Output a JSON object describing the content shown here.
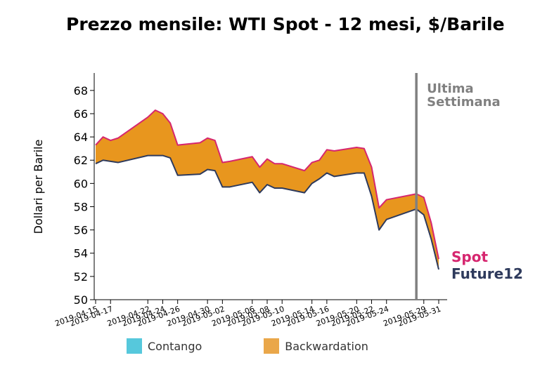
{
  "title": "Prezzo mensile: WTI Spot - 12 mesi, $/Barile",
  "chart_data": {
    "type": "area",
    "title": "Prezzo mensile: WTI Spot - 12 mesi, $/Barile",
    "ylabel": "Dollari per Barile",
    "xlabel": "",
    "ylim": [
      50,
      69.5
    ],
    "yticks": [
      50,
      52,
      54,
      56,
      58,
      60,
      62,
      64,
      66,
      68
    ],
    "xtick_labels": [
      "2019-04-15",
      "2019-04-17",
      "2019-04-22",
      "2019-04-24",
      "2019-04-26",
      "2019-04-30",
      "2019-05-02",
      "2019-05-06",
      "2019-05-08",
      "2019-05-10",
      "2019-05-14",
      "2019-05-16",
      "2019-05-20",
      "2019-05-22",
      "2019-05-24",
      "2019-05-29",
      "2019-05-31"
    ],
    "x": [
      "2019-04-15",
      "2019-04-16",
      "2019-04-17",
      "2019-04-18",
      "2019-04-22",
      "2019-04-23",
      "2019-04-24",
      "2019-04-25",
      "2019-04-26",
      "2019-04-29",
      "2019-04-30",
      "2019-05-01",
      "2019-05-02",
      "2019-05-03",
      "2019-05-06",
      "2019-05-07",
      "2019-05-08",
      "2019-05-09",
      "2019-05-10",
      "2019-05-13",
      "2019-05-14",
      "2019-05-15",
      "2019-05-16",
      "2019-05-17",
      "2019-05-20",
      "2019-05-21",
      "2019-05-22",
      "2019-05-23",
      "2019-05-24",
      "2019-05-28",
      "2019-05-29",
      "2019-05-30",
      "2019-05-31"
    ],
    "series": [
      {
        "name": "Spot",
        "color": "#d6266f",
        "values": [
          63.3,
          64.0,
          63.7,
          63.9,
          65.7,
          66.3,
          66.0,
          65.2,
          63.3,
          63.5,
          63.9,
          63.7,
          61.8,
          61.9,
          62.3,
          61.4,
          62.1,
          61.7,
          61.7,
          61.1,
          61.8,
          62.0,
          62.9,
          62.8,
          63.1,
          63.0,
          61.4,
          57.9,
          58.6,
          59.1,
          58.8,
          56.6,
          53.5
        ]
      },
      {
        "name": "Future12",
        "color": "#2e3a5c",
        "values": [
          61.7,
          62.0,
          61.9,
          61.8,
          62.4,
          62.4,
          62.4,
          62.2,
          60.7,
          60.8,
          61.2,
          61.1,
          59.7,
          59.7,
          60.1,
          59.2,
          59.9,
          59.6,
          59.6,
          59.2,
          60.0,
          60.4,
          60.9,
          60.6,
          60.9,
          60.9,
          58.9,
          56.0,
          56.9,
          57.8,
          57.3,
          55.2,
          52.6
        ]
      }
    ],
    "fill": {
      "backwardation_color": "#e8961e",
      "contango_color": "#56c8dc"
    },
    "vline": {
      "x": "2019-05-28",
      "color": "#808080",
      "label_lines": [
        "Ultima",
        "Settimana"
      ]
    },
    "legend": {
      "position": "bottom",
      "items": [
        {
          "label": "Contango",
          "color": "#56c8dc"
        },
        {
          "label": "Backwardation",
          "color": "#eaa74a"
        }
      ]
    }
  }
}
